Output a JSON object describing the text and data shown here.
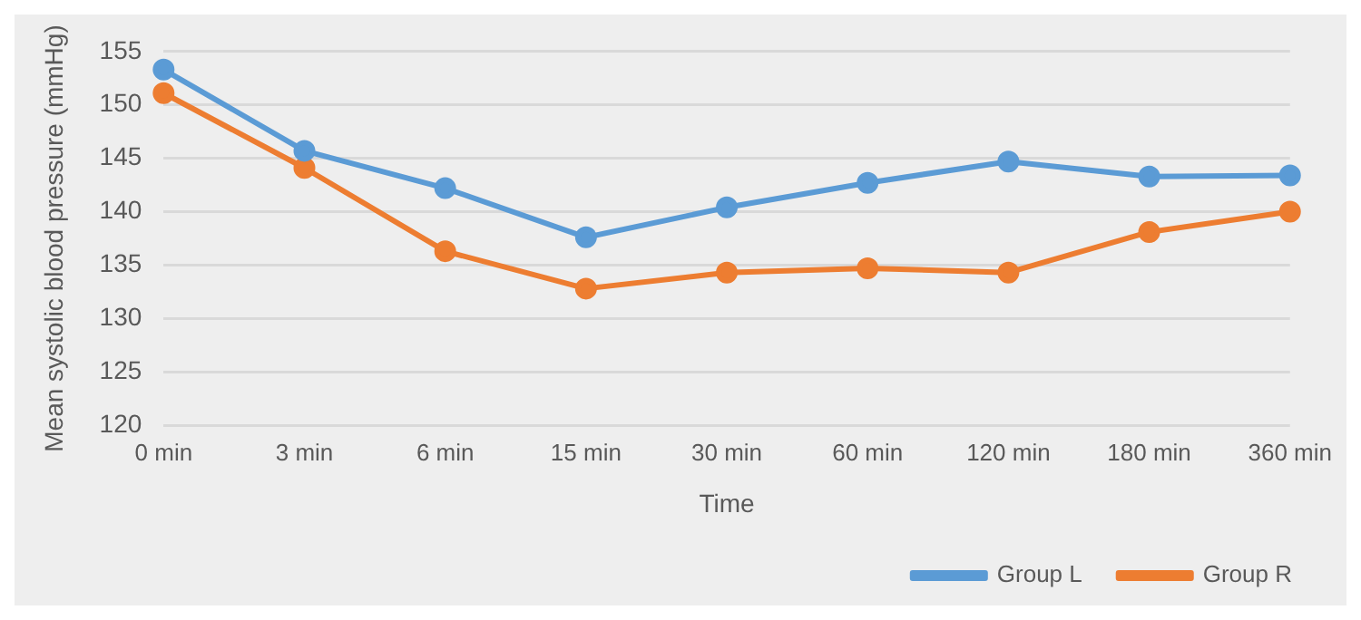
{
  "chart_data": {
    "type": "line",
    "xlabel": "Time",
    "ylabel": "Mean systolic blood pressure (mmHg)",
    "categories": [
      "0 min",
      "3 min",
      "6 min",
      "15 min",
      "30 min",
      "60 min",
      "120 min",
      "180 min",
      "360 min"
    ],
    "series": [
      {
        "name": "Group L",
        "color": "#5b9bd5",
        "values": [
          153.3,
          145.7,
          142.2,
          137.6,
          140.4,
          142.7,
          144.7,
          143.3,
          143.4
        ]
      },
      {
        "name": "Group R",
        "color": "#ed7d31",
        "values": [
          151.1,
          144.1,
          136.3,
          132.8,
          134.3,
          134.7,
          134.3,
          138.1,
          140.0
        ]
      }
    ],
    "ylim": [
      120,
      155
    ],
    "yticks": [
      120,
      125,
      130,
      135,
      140,
      145,
      150,
      155
    ],
    "grid": "y",
    "legend": "bottom right",
    "marker": "circle",
    "line_style": "solid"
  }
}
